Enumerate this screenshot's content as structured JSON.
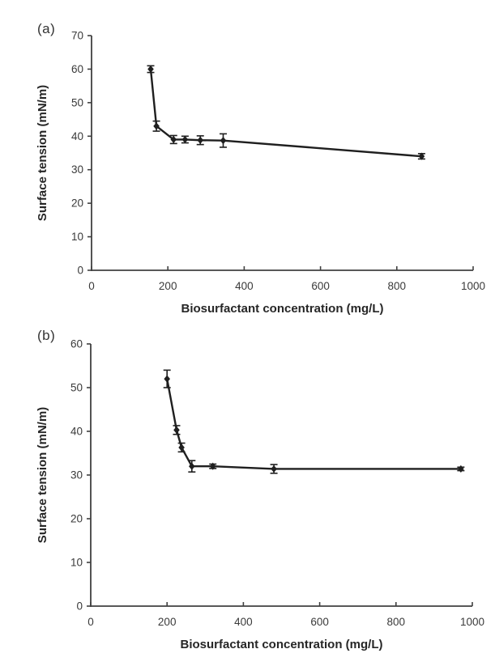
{
  "figure": {
    "background": "#ffffff",
    "panels": [
      {
        "label": "(a)"
      },
      {
        "label": "(b)"
      }
    ]
  },
  "chart_data": [
    {
      "id": "a",
      "panel_label": "(a)",
      "type": "line",
      "series": [
        {
          "name": "surface tension",
          "x": [
            155,
            170,
            215,
            245,
            285,
            345,
            865
          ],
          "y": [
            60,
            43,
            39,
            39,
            38.8,
            38.7,
            34
          ],
          "y_err": [
            1,
            1.5,
            1.2,
            1,
            1.3,
            2,
            0.8
          ]
        }
      ],
      "title": "",
      "xlabel": "Biosurfactant concentration (mg/L)",
      "ylabel": "Surface tension (mN/m)",
      "xlim": [
        0,
        1000
      ],
      "ylim": [
        0,
        70
      ],
      "xticks": [
        0,
        200,
        400,
        600,
        800,
        1000
      ],
      "yticks": [
        0,
        10,
        20,
        30,
        40,
        50,
        60,
        70
      ],
      "marker": "diamond",
      "grid": false,
      "legend": "none",
      "line_color": "#1f1f1f",
      "axis_color": "#404040"
    },
    {
      "id": "b",
      "panel_label": "(b)",
      "type": "line",
      "series": [
        {
          "name": "surface tension",
          "x": [
            200,
            225,
            238,
            265,
            320,
            480,
            970
          ],
          "y": [
            52,
            40.3,
            36.3,
            32,
            32,
            31.4,
            31.4
          ],
          "y_err": [
            2,
            1,
            1,
            1.3,
            0.5,
            1,
            0.4
          ]
        }
      ],
      "title": "",
      "xlabel": "Biosurfactant concentration (mg/L)",
      "ylabel": "Surface tension (mN/m)",
      "xlim": [
        0,
        1000
      ],
      "ylim": [
        0,
        60
      ],
      "xticks": [
        0,
        200,
        400,
        600,
        800,
        1000
      ],
      "yticks": [
        0,
        10,
        20,
        30,
        40,
        50,
        60
      ],
      "marker": "diamond",
      "grid": false,
      "legend": "none",
      "line_color": "#1f1f1f",
      "axis_color": "#404040"
    }
  ]
}
